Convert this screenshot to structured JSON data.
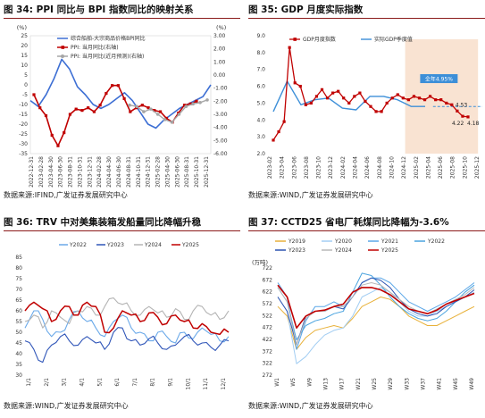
{
  "chart_data": [
    {
      "type": "line",
      "title": "图 34:  PPI 同比与 BPI 指数同比的映射关系",
      "source": "数据来源:IFIND,广发证券发展研究中心",
      "y_left_unit": "(%)",
      "y_right_unit": "(%)",
      "ylim_left": [
        -35,
        25
      ],
      "yticks_left": [
        25,
        20,
        15,
        10,
        5,
        0,
        -5,
        -10,
        -15,
        -20,
        -25,
        -30,
        -35
      ],
      "ylim_right": [
        -6,
        3
      ],
      "yticks_right": [
        "3.00",
        "2.00",
        "1.00",
        "0.00",
        "-1.00",
        "-2.00",
        "-3.00",
        "-4.00",
        "-5.00",
        "-6.00"
      ],
      "x_tick_labels": [
        "2022-12-31",
        "2023-02-28",
        "2023-04-30",
        "2023-06-30",
        "2023-08-31",
        "2023-10-31",
        "2023-12-31",
        "2024-02-28",
        "2024-04-30",
        "2024-06-30",
        "2024-08-31",
        "2024-10-31",
        "2024-12-31",
        "2025-02-28",
        "2025-04-30",
        "2025-06-30",
        "2025-08-31",
        "2025-10-31",
        "2025-12-31"
      ],
      "legend": [
        "综合船舶-大宗商品价格BPI同比",
        "PPI: 当月同比(右轴)",
        "PPI: 当月同比(近月预测)(右轴)"
      ],
      "series": [
        {
          "name": "综合船舶-大宗商品价格BPI同比",
          "color": "#3d6fd4",
          "axis": "left",
          "values": [
            -8,
            -11,
            -5,
            3,
            13,
            8,
            -1,
            -5,
            -10,
            -12,
            -10,
            -7,
            -4,
            -8,
            -14,
            -20,
            -22,
            -18,
            -15,
            -12,
            -10,
            -8,
            -6,
            0
          ]
        },
        {
          "name": "PPI: 当月同比(右轴)",
          "color": "#c00000",
          "axis": "right",
          "values": [
            -1.5,
            -2.5,
            -3.1,
            -4.6,
            -5.4,
            -4.4,
            -3.0,
            -2.6,
            -2.7,
            -2.5,
            -2.8,
            -2.3,
            -1.4,
            -0.8,
            -0.8,
            -1.8,
            -2.8,
            -2.5,
            -2.3,
            -2.5,
            -2.7,
            -2.8,
            -3.3,
            -3.6,
            -2.9,
            -2.3,
            -2.2,
            -2.0
          ]
        },
        {
          "name": "PPI: 当月同比(近月预测)(右轴)",
          "color": "#a6a6a6",
          "axis": "right",
          "values": [
            -2.3,
            -2.4,
            -2.8,
            -2.6,
            -3.0,
            -3.4,
            -3.6,
            -3.0,
            -2.4,
            -2.2,
            -2.1,
            -1.9
          ]
        }
      ]
    },
    {
      "type": "line",
      "title": "图 35:  GDP 月度实际指数",
      "source": "数据来源:WIND,广发证券发展研究中心",
      "ylim": [
        2.0,
        9.0
      ],
      "yticks": [
        "9.0",
        "8.0",
        "7.0",
        "6.0",
        "5.0",
        "4.0",
        "3.0",
        "2.0"
      ],
      "x_tick_labels": [
        "2023-02",
        "2023-04",
        "2023-06",
        "2023-08",
        "2023-10",
        "2023-12",
        "2024-02",
        "2024-04",
        "2024-06",
        "2024-08",
        "2024-10",
        "2024-12",
        "2025-02",
        "2025-04",
        "2025-06",
        "2025-08",
        "2025-10",
        "2025-12"
      ],
      "legend": [
        "GDP月度指数",
        "实际GDP季度值"
      ],
      "series": [
        {
          "name": "GDP月度指数",
          "color": "#c00000",
          "values": [
            2.8,
            3.3,
            3.9,
            8.3,
            6.2,
            6.0,
            4.9,
            5.0,
            5.4,
            5.8,
            5.3,
            5.6,
            5.7,
            5.3,
            5.0,
            5.4,
            5.6,
            5.1,
            4.8,
            4.5,
            4.5,
            5.0,
            5.3,
            5.5,
            5.3,
            5.2,
            5.4,
            5.3,
            5.2,
            5.4,
            5.2,
            5.2,
            5.0,
            4.9,
            4.53,
            4.22,
            4.18
          ]
        },
        {
          "name": "实际GDP季度值",
          "color": "#3d8fd8",
          "values": [
            4.5,
            6.3,
            4.9,
            5.2,
            5.3,
            4.7,
            4.6,
            5.4,
            5.4,
            5.2,
            4.8,
            4.8
          ]
        }
      ],
      "annotations": [
        "全年4.95%",
        "4.53",
        "4.22",
        "4.18"
      ],
      "reference_line": 4.8
    },
    {
      "type": "line",
      "title": "图 36:  TRV 中对美集装箱发船量同比降幅升稳",
      "source": "数据来源:WIND,广发证券发展研究中心",
      "ylim": [
        30,
        85
      ],
      "yticks": [
        85,
        80,
        75,
        70,
        65,
        60,
        55,
        50,
        45,
        40,
        35,
        30
      ],
      "x_tick_labels": [
        "1/1",
        "2/1",
        "3/1",
        "4/1",
        "5/1",
        "6/1",
        "7/1",
        "8/1",
        "9/1",
        "10/1",
        "11/1",
        "12/1"
      ],
      "legend": [
        "Y2022",
        "Y2023",
        "Y2024",
        "Y2025"
      ],
      "series": [
        {
          "name": "Y2022",
          "color": "#6aa9e9",
          "values": [
            52,
            60,
            56,
            48,
            50,
            56,
            60,
            55,
            52,
            48,
            55,
            58,
            52,
            50,
            46,
            50,
            48,
            45,
            50,
            47,
            52,
            49,
            46,
            48
          ]
        },
        {
          "name": "Y2023",
          "color": "#2f55b8",
          "values": [
            46,
            42,
            36,
            44,
            48,
            46,
            44,
            48,
            45,
            42,
            50,
            52,
            46,
            44,
            47,
            45,
            42,
            44,
            48,
            46,
            45,
            43,
            44,
            46
          ]
        },
        {
          "name": "Y2024",
          "color": "#b4b4b4",
          "values": [
            55,
            58,
            52,
            60,
            57,
            54,
            60,
            62,
            58,
            62,
            66,
            63,
            60,
            58,
            62,
            59,
            57,
            61,
            56,
            60,
            62,
            58,
            56,
            60
          ]
        },
        {
          "name": "Y2025",
          "color": "#c00000",
          "values": [
            60,
            64,
            61,
            55,
            60,
            62,
            58,
            64,
            62,
            50,
            52,
            60,
            58,
            55,
            59,
            57,
            54,
            58,
            55,
            52,
            54,
            50,
            49,
            50
          ]
        }
      ]
    },
    {
      "type": "line",
      "title": "图 37:  CCTD25 省电厂耗煤同比降幅为-3.6%",
      "source": "数据来源:WIND,广发证券发展研究中心",
      "y_unit": "(万吨)",
      "ylim": [
        272,
        722
      ],
      "yticks": [
        722,
        672,
        622,
        572,
        522,
        472,
        422,
        372,
        322,
        272
      ],
      "x_tick_labels": [
        "W1",
        "W5",
        "W9",
        "W13",
        "W17",
        "W21",
        "W25",
        "W29",
        "W33",
        "W37",
        "W41",
        "W45",
        "W49"
      ],
      "legend": [
        "Y2019",
        "Y2020",
        "Y2021",
        "Y2022",
        "Y2023",
        "Y2024",
        "Y2025"
      ],
      "series": [
        {
          "name": "Y2019",
          "color": "#e8b13a",
          "values": [
            560,
            520,
            380,
            430,
            460,
            470,
            480,
            470,
            510,
            560,
            580,
            600,
            590,
            560,
            520,
            500,
            480,
            480,
            500,
            520,
            540,
            560
          ]
        },
        {
          "name": "Y2020",
          "color": "#a2cdf2",
          "values": [
            600,
            540,
            320,
            350,
            400,
            440,
            460,
            470,
            520,
            600,
            620,
            640,
            620,
            580,
            540,
            520,
            520,
            540,
            560,
            580,
            600,
            620
          ]
        },
        {
          "name": "Y2021",
          "color": "#5ba7e8",
          "values": [
            660,
            600,
            380,
            500,
            560,
            560,
            580,
            560,
            600,
            660,
            680,
            680,
            660,
            620,
            580,
            560,
            540,
            560,
            580,
            600,
            630,
            660
          ]
        },
        {
          "name": "Y2022",
          "color": "#4aa3df",
          "values": [
            640,
            580,
            420,
            480,
            500,
            510,
            530,
            540,
            620,
            700,
            690,
            650,
            600,
            560,
            530,
            510,
            500,
            510,
            540,
            580,
            620,
            650
          ]
        },
        {
          "name": "Y2023",
          "color": "#2c52b0",
          "values": [
            600,
            540,
            400,
            520,
            540,
            540,
            560,
            550,
            600,
            660,
            680,
            670,
            640,
            590,
            550,
            530,
            520,
            530,
            560,
            580,
            600,
            630
          ]
        },
        {
          "name": "Y2024",
          "color": "#b8b8b8",
          "values": [
            640,
            580,
            400,
            510,
            540,
            540,
            560,
            560,
            600,
            650,
            660,
            650,
            620,
            590,
            560,
            540,
            530,
            550,
            570,
            590,
            610,
            640
          ]
        },
        {
          "name": "Y2025",
          "color": "#c00000",
          "values": [
            650,
            600,
            470,
            520,
            540,
            545,
            560,
            570,
            620,
            640,
            640,
            630,
            610,
            580,
            550,
            540,
            530,
            545,
            570,
            585,
            600,
            615
          ]
        }
      ]
    }
  ]
}
